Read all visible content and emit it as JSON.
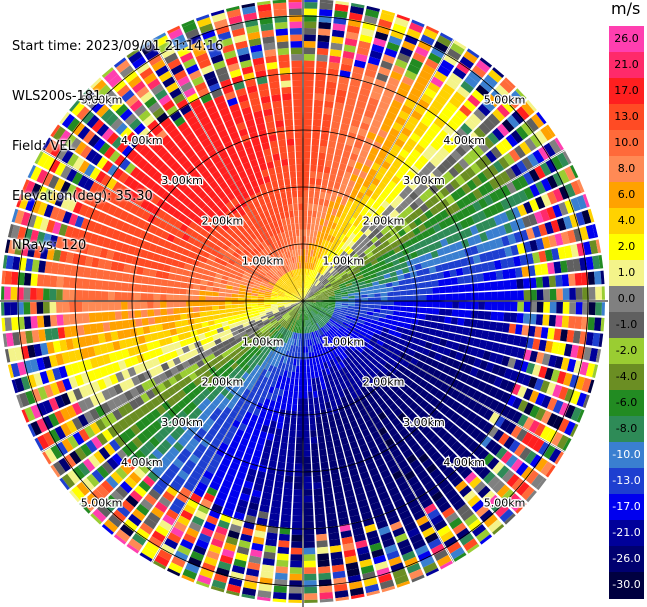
{
  "info": {
    "start_time": "Start time: 2023/09/01 21:14:16",
    "instrument": "WLS200s-181",
    "field": "Field: VEL",
    "elevation": "Elevation(deg): 35.30",
    "nrays": "NRays: 120"
  },
  "colorbar": {
    "unit": "m/s",
    "labels": [
      "26.0",
      "21.0",
      "17.0",
      "13.0",
      "10.0",
      "8.0",
      "6.0",
      "4.0",
      "2.0",
      "1.0",
      "0.0",
      "-1.0",
      "-2.0",
      "-4.0",
      "-6.0",
      "-8.0",
      "-10.0",
      "-13.0",
      "-17.0",
      "-21.0",
      "-26.0",
      "-30.0"
    ],
    "colors": [
      "#ff3fb0",
      "#ff2a6a",
      "#ff1f1f",
      "#ff4b24",
      "#ff6a3a",
      "#ff8a55",
      "#ffa200",
      "#ffd200",
      "#ffff00",
      "#f4f48a",
      "#808080",
      "#606060",
      "#9acd32",
      "#6b8e23",
      "#228b22",
      "#2e8b57",
      "#3a7fd0",
      "#1e3fd0",
      "#0000ee",
      "#00009a",
      "#000070",
      "#000040"
    ]
  },
  "range_labels": [
    "1.00km",
    "2.00km",
    "3.00km",
    "4.00km",
    "5.00km"
  ],
  "chart_data": {
    "type": "heatmap",
    "projection": "polar PPI",
    "field": "VEL",
    "units": "m/s",
    "rays": 120,
    "range_rings_km": [
      1,
      2,
      3,
      4,
      5
    ],
    "velocity_pattern": {
      "max_positive_azimuth_deg": 325,
      "max_negative_azimuth_deg": 170,
      "noise_begins_km": 4.2
    }
  }
}
